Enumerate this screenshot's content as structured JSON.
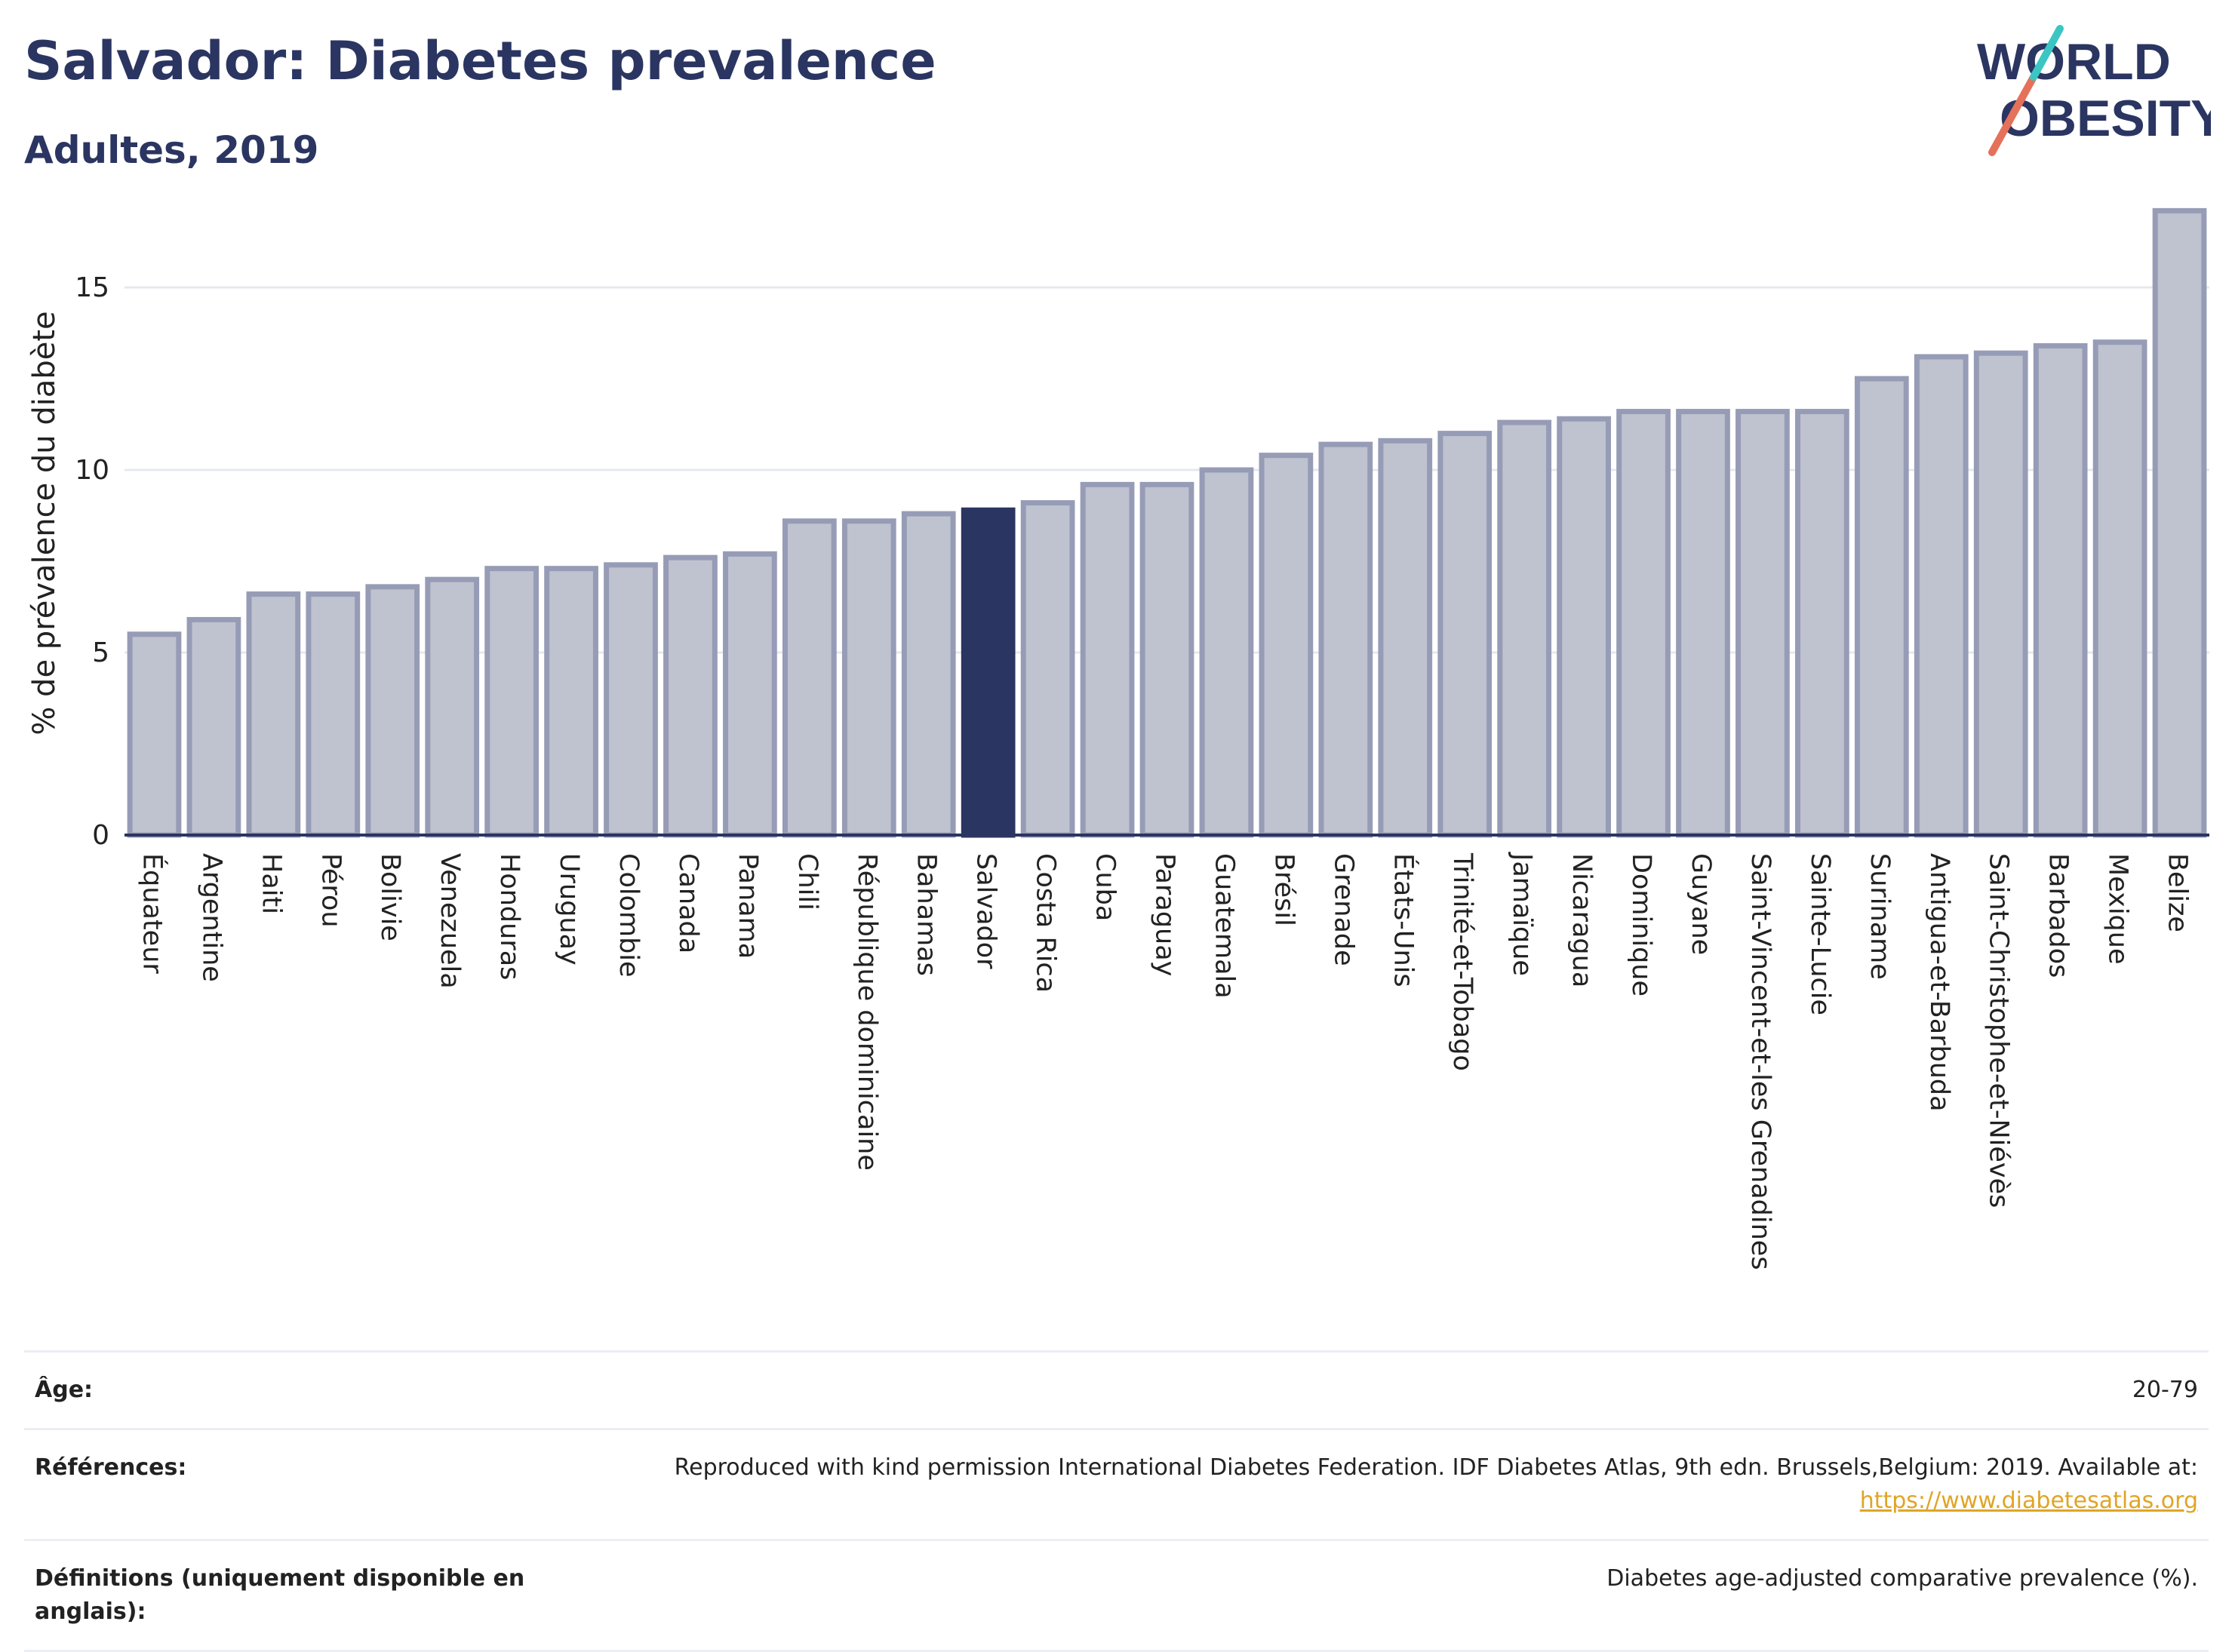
{
  "header": {
    "title": "Salvador: Diabetes prevalence",
    "subtitle": "Adultes, 2019"
  },
  "logo": {
    "line1": "WORLD",
    "line2": "OBESITY",
    "text_color": "#2b3561",
    "slash_colors": [
      "#e5715a",
      "#3bc6c3"
    ]
  },
  "chart_data": {
    "type": "bar",
    "ylabel": "% de prévalence du diabète",
    "ylim": [
      0,
      17.5
    ],
    "yticks": [
      0,
      5,
      10,
      15
    ],
    "grid": true,
    "highlight": "Salvador",
    "colors": {
      "bar": "#bfc2cf",
      "bar_border": "#979cb6",
      "highlight": "#2b3561",
      "grid": "#e6e8ef"
    },
    "categories": [
      "Équateur",
      "Argentine",
      "Haiti",
      "Pérou",
      "Bolivie",
      "Venezuela",
      "Honduras",
      "Uruguay",
      "Colombie",
      "Canada",
      "Panama",
      "Chili",
      "République dominicaine",
      "Bahamas",
      "Salvador",
      "Costa Rica",
      "Cuba",
      "Paraguay",
      "Guatemala",
      "Brésil",
      "Grenade",
      "États-Unis",
      "Trinité-et-Tobago",
      "Jamaïque",
      "Nicaragua",
      "Dominique",
      "Guyane",
      "Saint-Vincent-et-les Grenadines",
      "Sainte-Lucie",
      "Suriname",
      "Antigua-et-Barbuda",
      "Saint-Christophe-et-Niévès",
      "Barbados",
      "Mexique",
      "Belize"
    ],
    "values": [
      5.5,
      5.9,
      6.6,
      6.6,
      6.8,
      7.0,
      7.3,
      7.3,
      7.4,
      7.6,
      7.7,
      8.6,
      8.6,
      8.8,
      8.9,
      9.1,
      9.6,
      9.6,
      10.0,
      10.4,
      10.7,
      10.8,
      11.0,
      11.3,
      11.4,
      11.6,
      11.6,
      11.6,
      11.6,
      12.5,
      13.1,
      13.2,
      13.4,
      13.5,
      17.1
    ]
  },
  "info": {
    "age": {
      "label": "Âge:",
      "value": "20-79"
    },
    "references": {
      "label": "Références:",
      "text": "Reproduced with kind permission International Diabetes Federation. IDF Diabetes Atlas, 9th edn. Brussels,Belgium: 2019. Available at:",
      "link": "https://www.diabetesatlas.org"
    },
    "definitions": {
      "label": "Définitions (uniquement disponible en anglais):",
      "value": "Diabetes age-adjusted comparative prevalence (%)."
    }
  }
}
